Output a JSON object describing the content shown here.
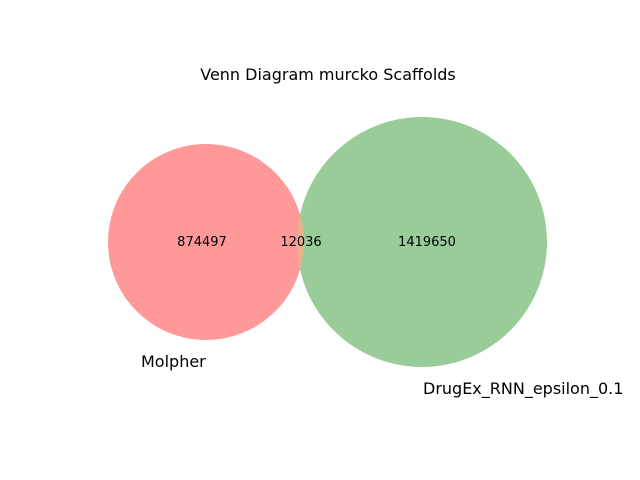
{
  "title": "Venn Diagram murcko Scaffolds",
  "colors": {
    "set_a": "#ff9999",
    "set_b": "#99cc99",
    "overlap": "#e6b38a"
  },
  "chart_data": {
    "type": "venn",
    "title": "Venn Diagram murcko Scaffolds",
    "sets": [
      {
        "label": "Molpher",
        "only_count": "874497"
      },
      {
        "label": "DrugEx_RNN_epsilon_0.1",
        "only_count": "1419650"
      }
    ],
    "intersection_count": "12036"
  }
}
